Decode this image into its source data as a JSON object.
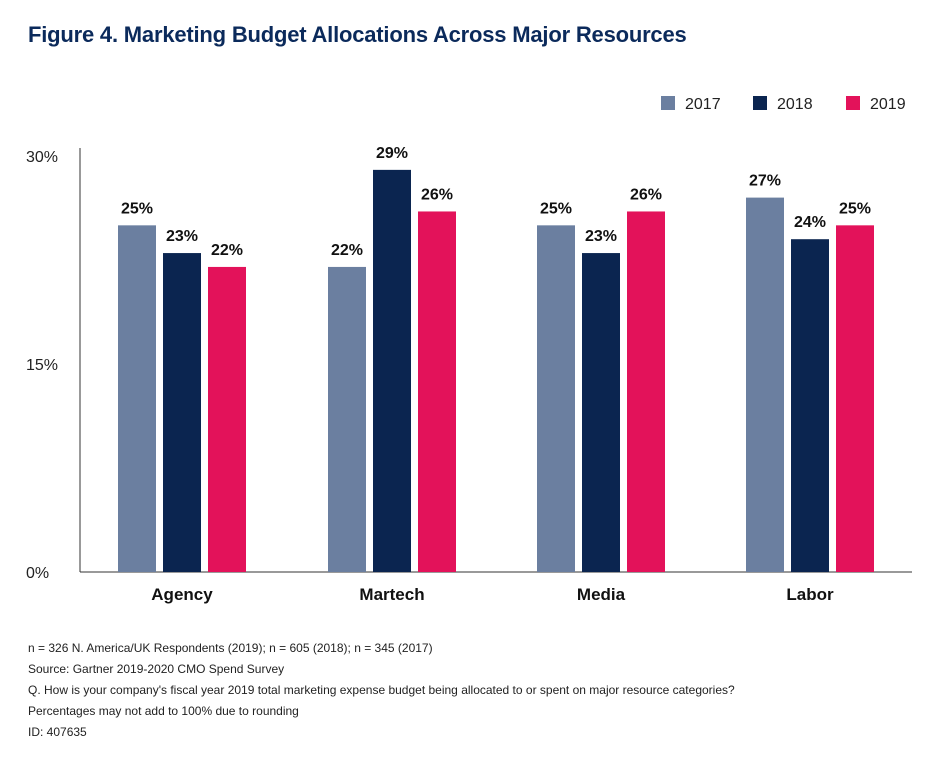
{
  "title": "Figure 4. Marketing Budget Allocations Across Major Resources",
  "chart_data": {
    "type": "bar",
    "categories": [
      "Agency",
      "Martech",
      "Media",
      "Labor"
    ],
    "series": [
      {
        "name": "2017",
        "values": [
          25,
          22,
          25,
          27
        ],
        "color": "#6b7fa0"
      },
      {
        "name": "2018",
        "values": [
          23,
          29,
          23,
          24
        ],
        "color": "#0b2550"
      },
      {
        "name": "2019",
        "values": [
          22,
          26,
          26,
          25
        ],
        "color": "#e3125a"
      }
    ],
    "value_labels": [
      [
        "25%",
        "22%",
        "25%",
        "27%"
      ],
      [
        "23%",
        "29%",
        "23%",
        "24%"
      ],
      [
        "22%",
        "26%",
        "26%",
        "25%"
      ]
    ],
    "y_ticks": [
      "0%",
      "15%",
      "30%"
    ],
    "y_tick_values": [
      0,
      15,
      30
    ],
    "ylim": [
      0,
      30
    ],
    "legend_position": "top-right",
    "grid": false
  },
  "notes": [
    "n = 326 N. America/UK Respondents (2019); n = 605 (2018); n = 345 (2017)",
    "Source: Gartner 2019-2020 CMO Spend Survey",
    "Q. How is your company's fiscal year 2019 total marketing expense budget being allocated to or spent on major resource categories?",
    "Percentages may not add to 100% due to rounding",
    "ID: 407635"
  ]
}
